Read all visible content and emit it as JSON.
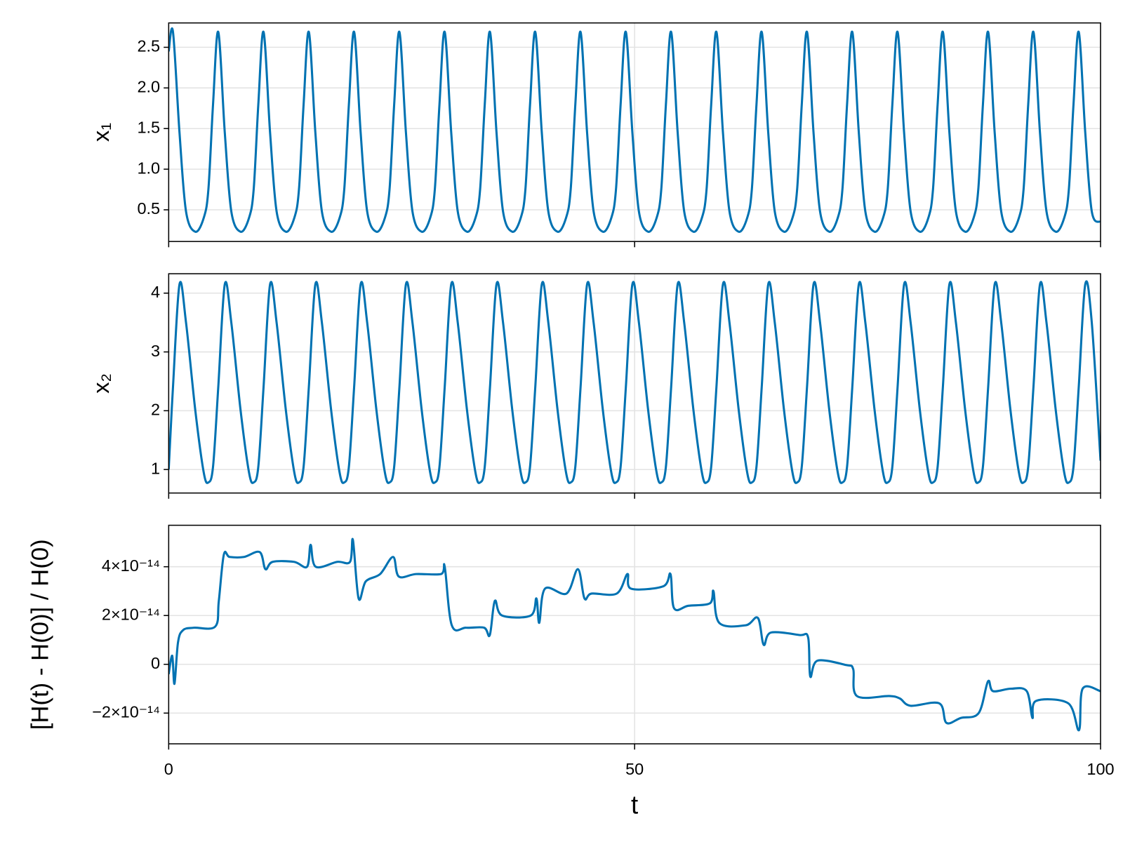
{
  "chart_data": [
    {
      "type": "line",
      "ylabel": "x₁",
      "color": "#0072b2",
      "xlim": [
        0,
        100
      ],
      "xticks": [
        0,
        50,
        100
      ],
      "show_xticklabels": false,
      "ylim": [
        0.11,
        2.8
      ],
      "yticks": [
        0.5,
        {
          "value": 1,
          "label": "1.0"
        },
        1.5,
        {
          "value": 2,
          "label": "2.0"
        },
        2.5
      ],
      "grid": true,
      "x": [
        0,
        0.46,
        1.16,
        1.86,
        2.86,
        3.76,
        4.26,
        4.76,
        5.32,
        6.02,
        6.72,
        7.72,
        8.62,
        9.12,
        9.62,
        10.18,
        10.88,
        11.58,
        12.58,
        13.48,
        13.98,
        14.48,
        15.04,
        15.74,
        16.44,
        17.44,
        18.34,
        18.84,
        19.34,
        19.9,
        20.6,
        21.3,
        22.3,
        23.2,
        23.7,
        24.2,
        24.76,
        25.46,
        26.16,
        27.16,
        28.06,
        28.56,
        29.06,
        29.62,
        30.32,
        31.02,
        32.02,
        32.92,
        33.42,
        33.92,
        34.48,
        35.18,
        35.88,
        36.88,
        37.78,
        38.28,
        38.78,
        39.34,
        40.04,
        40.74,
        41.74,
        42.64,
        43.14,
        43.64,
        44.2,
        44.9,
        45.6,
        46.6,
        47.5,
        48,
        48.5,
        49.06,
        49.76,
        50.46,
        51.46,
        52.36,
        52.86,
        53.36,
        53.92,
        54.62,
        55.32,
        56.32,
        57.22,
        57.72,
        58.22,
        58.78,
        59.48,
        60.18,
        61.18,
        62.08,
        62.58,
        63.08,
        63.64,
        64.34,
        65.04,
        66.04,
        66.94,
        67.44,
        67.94,
        68.5,
        69.2,
        69.9,
        70.9,
        71.8,
        72.3,
        72.8,
        73.36,
        74.06,
        74.76,
        75.76,
        76.66,
        77.16,
        77.66,
        78.22,
        78.92,
        79.62,
        80.62,
        81.52,
        82.02,
        82.52,
        83.08,
        83.78,
        84.48,
        85.48,
        86.38,
        86.88,
        87.38,
        87.94,
        88.64,
        89.34,
        90.34,
        91.24,
        91.74,
        92.24,
        92.8,
        93.5,
        94.2,
        95.2,
        96.1,
        96.6,
        97.1,
        97.66,
        98.36,
        99.06,
        100
      ],
      "values": [
        2.45,
        2.69,
        1.45,
        0.48,
        0.23,
        0.4,
        0.75,
        1.8,
        2.69,
        1.45,
        0.48,
        0.23,
        0.4,
        0.75,
        1.8,
        2.69,
        1.45,
        0.48,
        0.23,
        0.4,
        0.75,
        1.8,
        2.69,
        1.45,
        0.48,
        0.23,
        0.4,
        0.75,
        1.8,
        2.69,
        1.45,
        0.48,
        0.23,
        0.4,
        0.75,
        1.8,
        2.69,
        1.45,
        0.48,
        0.23,
        0.4,
        0.75,
        1.8,
        2.69,
        1.45,
        0.48,
        0.23,
        0.4,
        0.75,
        1.8,
        2.69,
        1.45,
        0.48,
        0.23,
        0.4,
        0.75,
        1.8,
        2.69,
        1.45,
        0.48,
        0.23,
        0.4,
        0.75,
        1.8,
        2.69,
        1.45,
        0.48,
        0.23,
        0.4,
        0.75,
        1.8,
        2.69,
        1.45,
        0.48,
        0.23,
        0.4,
        0.75,
        1.8,
        2.69,
        1.45,
        0.48,
        0.23,
        0.4,
        0.75,
        1.8,
        2.69,
        1.45,
        0.48,
        0.23,
        0.4,
        0.75,
        1.8,
        2.69,
        1.45,
        0.48,
        0.23,
        0.4,
        0.75,
        1.8,
        2.69,
        1.45,
        0.48,
        0.23,
        0.4,
        0.75,
        1.8,
        2.69,
        1.45,
        0.48,
        0.23,
        0.4,
        0.75,
        1.8,
        2.69,
        1.45,
        0.48,
        0.23,
        0.4,
        0.75,
        1.8,
        2.69,
        1.45,
        0.48,
        0.23,
        0.4,
        0.75,
        1.8,
        2.69,
        1.45,
        0.48,
        0.23,
        0.4,
        0.75,
        1.8,
        2.69,
        1.45,
        0.48,
        0.23,
        0.4,
        0.75,
        1.8,
        2.69,
        1.45,
        0.48,
        0.35
      ]
    },
    {
      "type": "line",
      "ylabel": "x₂",
      "color": "#0072b2",
      "xlim": [
        0,
        100
      ],
      "xticks": [
        0,
        50,
        100
      ],
      "show_xticklabels": false,
      "ylim": [
        0.6,
        4.33
      ],
      "yticks": [
        1,
        2,
        3,
        4
      ],
      "grid": true,
      "x": [
        0,
        0.46,
        1.16,
        1.86,
        2.86,
        3.76,
        4.26,
        4.76,
        5.32,
        6.02,
        6.72,
        7.72,
        8.62,
        9.12,
        9.62,
        10.18,
        10.88,
        11.58,
        12.58,
        13.48,
        13.98,
        14.48,
        15.04,
        15.74,
        16.44,
        17.44,
        18.34,
        18.84,
        19.34,
        19.9,
        20.6,
        21.3,
        22.3,
        23.2,
        23.7,
        24.2,
        24.76,
        25.46,
        26.16,
        27.16,
        28.06,
        28.56,
        29.06,
        29.62,
        30.32,
        31.02,
        32.02,
        32.92,
        33.42,
        33.92,
        34.48,
        35.18,
        35.88,
        36.88,
        37.78,
        38.28,
        38.78,
        39.34,
        40.04,
        40.74,
        41.74,
        42.64,
        43.14,
        43.64,
        44.2,
        44.9,
        45.6,
        46.6,
        47.5,
        48,
        48.5,
        49.06,
        49.76,
        50.46,
        51.46,
        52.36,
        52.86,
        53.36,
        53.92,
        54.62,
        55.32,
        56.32,
        57.22,
        57.72,
        58.22,
        58.78,
        59.48,
        60.18,
        61.18,
        62.08,
        62.58,
        63.08,
        63.64,
        64.34,
        65.04,
        66.04,
        66.94,
        67.44,
        67.94,
        68.5,
        69.2,
        69.9,
        70.9,
        71.8,
        72.3,
        72.8,
        73.36,
        74.06,
        74.76,
        75.76,
        76.66,
        77.16,
        77.66,
        78.22,
        78.92,
        79.62,
        80.62,
        81.52,
        82.02,
        82.52,
        83.08,
        83.78,
        84.48,
        85.48,
        86.38,
        86.88,
        87.38,
        87.94,
        88.64,
        89.34,
        90.34,
        91.24,
        91.74,
        92.24,
        92.8,
        93.5,
        94.2,
        95.2,
        96.1,
        96.6,
        97.1,
        97.66,
        98.36,
        99.06,
        100
      ],
      "values": [
        1.0,
        2.4,
        4.15,
        3.5,
        2.0,
        0.95,
        0.78,
        1.05,
        2.4,
        4.15,
        3.5,
        2.0,
        0.95,
        0.78,
        1.05,
        2.4,
        4.15,
        3.5,
        2.0,
        0.95,
        0.78,
        1.05,
        2.4,
        4.15,
        3.5,
        2.0,
        0.95,
        0.78,
        1.05,
        2.4,
        4.15,
        3.5,
        2.0,
        0.95,
        0.78,
        1.05,
        2.4,
        4.15,
        3.5,
        2.0,
        0.95,
        0.78,
        1.05,
        2.4,
        4.15,
        3.5,
        2.0,
        0.95,
        0.78,
        1.05,
        2.4,
        4.15,
        3.5,
        2.0,
        0.95,
        0.78,
        1.05,
        2.4,
        4.15,
        3.5,
        2.0,
        0.95,
        0.78,
        1.05,
        2.4,
        4.15,
        3.5,
        2.0,
        0.95,
        0.78,
        1.05,
        2.4,
        4.15,
        3.5,
        2.0,
        0.95,
        0.78,
        1.05,
        2.4,
        4.15,
        3.5,
        2.0,
        0.95,
        0.78,
        1.05,
        2.4,
        4.15,
        3.5,
        2.0,
        0.95,
        0.78,
        1.05,
        2.4,
        4.15,
        3.5,
        2.0,
        0.95,
        0.78,
        1.05,
        2.4,
        4.15,
        3.5,
        2.0,
        0.95,
        0.78,
        1.05,
        2.4,
        4.15,
        3.5,
        2.0,
        0.95,
        0.78,
        1.05,
        2.4,
        4.15,
        3.5,
        2.0,
        0.95,
        0.78,
        1.05,
        2.4,
        4.15,
        3.5,
        2.0,
        0.95,
        0.78,
        1.05,
        2.4,
        4.15,
        3.5,
        2.0,
        0.95,
        0.78,
        1.05,
        2.4,
        4.15,
        3.5,
        2.0,
        0.95,
        0.78,
        1.05,
        2.4,
        4.15,
        3.5,
        1.15
      ]
    },
    {
      "type": "line",
      "ylabel": "[H(t) - H(0)] / H(0)",
      "xlabel": "t",
      "color": "#0072b2",
      "xlim": [
        0,
        100
      ],
      "xticks": [
        0,
        50,
        100
      ],
      "show_xticklabels": true,
      "ylim": [
        -3.26e-14,
        5.7e-14
      ],
      "yticks": [
        {
          "value": -2e-14,
          "label": "−2×10⁻¹⁴"
        },
        0,
        {
          "value": 2e-14,
          "label": "2×10⁻¹⁴"
        },
        {
          "value": 4e-14,
          "label": "4×10⁻¹⁴"
        }
      ],
      "grid": true,
      "x": [
        0,
        0.38,
        0.62,
        1.0,
        1.54,
        2.69,
        5.0,
        5.38,
        5.92,
        6.54,
        8.08,
        9.77,
        10.38,
        11.15,
        13.46,
        14.85,
        15.23,
        15.77,
        18.08,
        19.46,
        19.77,
        20.38,
        21.15,
        22.69,
        24.08,
        24.69,
        26.54,
        29.23,
        29.62,
        30.38,
        31.92,
        33.85,
        34.46,
        35.0,
        35.77,
        38.85,
        39.46,
        39.77,
        40.38,
        42.69,
        43.92,
        44.62,
        45.38,
        48.08,
        49.23,
        49.62,
        53.08,
        53.85,
        54.23,
        55.77,
        58.08,
        58.46,
        59.08,
        61.92,
        63.23,
        63.85,
        64.62,
        67.69,
        68.62,
        68.85,
        69.62,
        72.69,
        73.46,
        73.85,
        77.31,
        78.46,
        79.62,
        82.69,
        83.46,
        85.0,
        86.92,
        87.92,
        88.46,
        90.38,
        92.08,
        92.69,
        93.08,
        96.54,
        97.69,
        98.08,
        100
      ],
      "values": [
        -4e-15,
        3.5e-15,
        -8e-15,
        9e-15,
        1.4e-14,
        1.5e-14,
        1.55e-14,
        2.6e-14,
        4.5e-14,
        4.4e-14,
        4.4e-14,
        4.6e-14,
        3.9e-14,
        4.2e-14,
        4.2e-14,
        4e-14,
        4.9e-14,
        4e-14,
        4.2e-14,
        4.2e-14,
        5.1e-14,
        2.7e-14,
        3.4e-14,
        3.7e-14,
        4.4e-14,
        3.6e-14,
        3.7e-14,
        3.7e-14,
        4e-14,
        1.6e-14,
        1.5e-14,
        1.5e-14,
        1.2e-14,
        2.6e-14,
        2e-14,
        2e-14,
        2.7e-14,
        1.7e-14,
        3.1e-14,
        2.9e-14,
        3.9e-14,
        2.7e-14,
        2.9e-14,
        2.9e-14,
        3.7e-14,
        3.1e-14,
        3.2e-14,
        3.7e-14,
        2.3e-14,
        2.4e-14,
        2.5e-14,
        3e-14,
        1.7e-14,
        1.6e-14,
        1.9e-14,
        8e-15,
        1.3e-14,
        1.2e-14,
        1.1e-14,
        -5e-15,
        1.5e-15,
        -3e-16,
        -2e-15,
        -1.3e-14,
        -1.3e-14,
        -1.4e-14,
        -1.7e-14,
        -1.6e-14,
        -2.4e-14,
        -2.2e-14,
        -2e-14,
        -7e-15,
        -1.1e-14,
        -1e-14,
        -1.1e-14,
        -2.2e-14,
        -1.5e-14,
        -1.6e-14,
        -2.7e-14,
        -1e-14,
        -1.1e-14
      ]
    }
  ]
}
